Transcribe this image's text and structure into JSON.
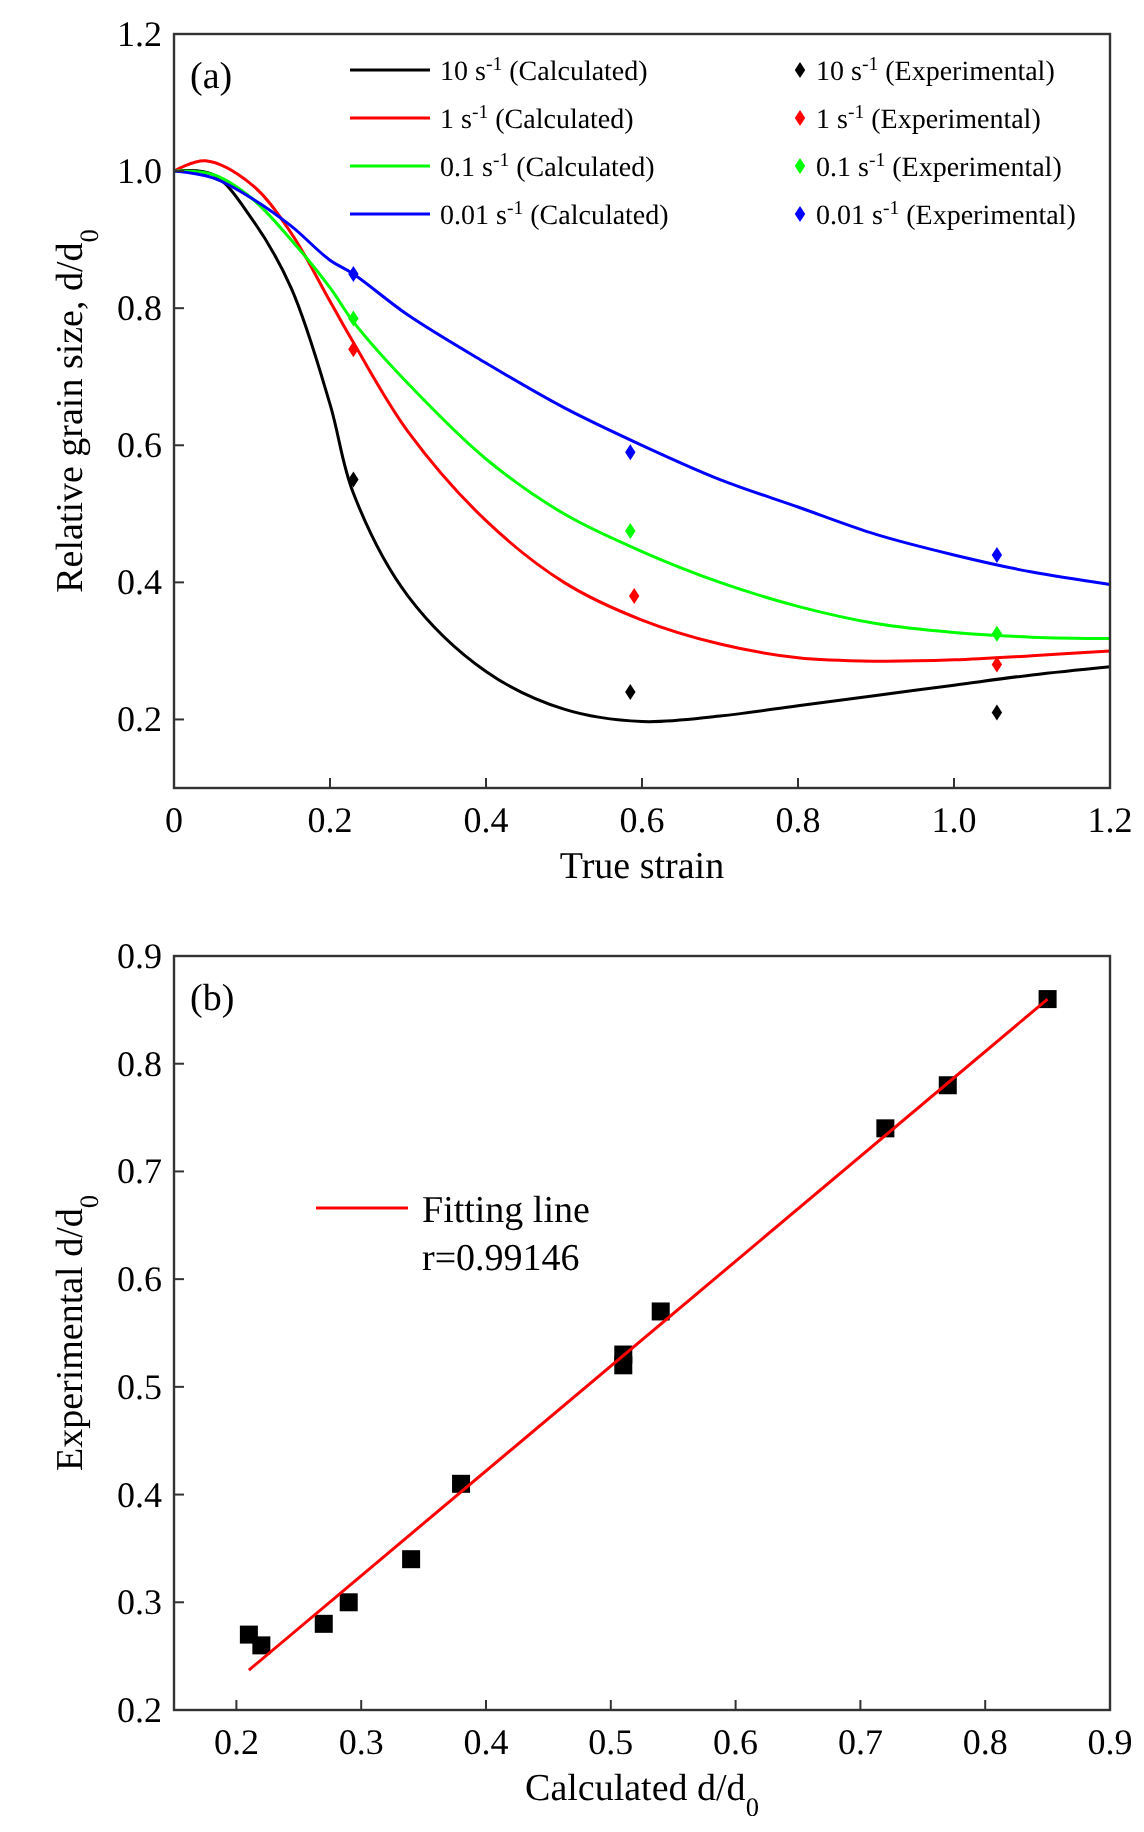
{
  "chart_data": [
    {
      "type": "line",
      "title": "(a)",
      "xlabel": "True strain",
      "ylabel": "Relative grain size, d/d$_{0}$",
      "xlim": [
        0,
        1.2
      ],
      "ylim": [
        0.1,
        1.2
      ],
      "xticks": [
        0,
        0.2,
        0.4,
        0.6,
        0.8,
        {
          "value": 1,
          "label": "1.0"
        },
        1.2
      ],
      "yticks": [
        0.2,
        0.4,
        0.6,
        0.8,
        {
          "value": 1,
          "label": "1.0"
        },
        1.2
      ],
      "grid": false,
      "legend": "top right",
      "series": [
        {
          "name": "10 s$^{-1}$ (Calculated)",
          "color": "#000000",
          "marker": "none",
          "line_style": "solid",
          "x": [
            0,
            0.05,
            0.1,
            0.15,
            0.2,
            0.23,
            0.3,
            0.4,
            0.5,
            0.6,
            0.7,
            0.8,
            0.9,
            1.0,
            1.1,
            1.2
          ],
          "values": [
            1.0,
            0.995,
            0.93,
            0.83,
            0.66,
            0.53,
            0.38,
            0.27,
            0.215,
            0.197,
            0.205,
            0.22,
            0.235,
            0.25,
            0.265,
            0.277
          ]
        },
        {
          "name": "1 s$^{-1}$ (Calculated)",
          "color": "#ff0000",
          "marker": "none",
          "line_style": "solid",
          "x": [
            0,
            0.04,
            0.1,
            0.15,
            0.2,
            0.23,
            0.3,
            0.4,
            0.5,
            0.6,
            0.7,
            0.8,
            0.9,
            1.0,
            1.1,
            1.2
          ],
          "values": [
            1.0,
            1.015,
            0.98,
            0.91,
            0.81,
            0.75,
            0.62,
            0.49,
            0.4,
            0.345,
            0.31,
            0.29,
            0.285,
            0.287,
            0.293,
            0.3
          ]
        },
        {
          "name": "0.1 s$^{-1}$ (Calculated)",
          "color": "#00ff00",
          "marker": "none",
          "line_style": "solid",
          "x": [
            0,
            0.05,
            0.1,
            0.15,
            0.2,
            0.23,
            0.3,
            0.4,
            0.5,
            0.6,
            0.7,
            0.8,
            0.9,
            1.0,
            1.1,
            1.2
          ],
          "values": [
            1.0,
            0.995,
            0.96,
            0.9,
            0.83,
            0.78,
            0.69,
            0.58,
            0.5,
            0.445,
            0.4,
            0.365,
            0.34,
            0.327,
            0.32,
            0.318
          ]
        },
        {
          "name": "0.01 s$^{-1}$ (Calculated)",
          "color": "#0000ff",
          "marker": "none",
          "line_style": "solid",
          "x": [
            0,
            0.05,
            0.1,
            0.15,
            0.2,
            0.23,
            0.3,
            0.4,
            0.5,
            0.6,
            0.7,
            0.8,
            0.9,
            1.0,
            1.1,
            1.2
          ],
          "values": [
            1.0,
            0.99,
            0.96,
            0.92,
            0.87,
            0.85,
            0.79,
            0.72,
            0.655,
            0.6,
            0.55,
            0.51,
            0.47,
            0.44,
            0.415,
            0.397
          ]
        },
        {
          "name": "10 s$^{-1}$ (Experimental)",
          "type": "scatter",
          "color": "#000000",
          "marker": "diamond",
          "x": [
            0.23,
            0.585,
            1.055
          ],
          "values": [
            0.55,
            0.24,
            0.21
          ]
        },
        {
          "name": "1 s$^{-1}$ (Experimental)",
          "type": "scatter",
          "color": "#ff0000",
          "marker": "diamond",
          "x": [
            0.23,
            0.59,
            1.055
          ],
          "values": [
            0.74,
            0.38,
            0.28
          ]
        },
        {
          "name": "0.1 s$^{-1}$ (Experimental)",
          "type": "scatter",
          "color": "#00ff00",
          "marker": "diamond",
          "x": [
            0.23,
            0.585,
            1.055
          ],
          "values": [
            0.785,
            0.475,
            0.325
          ]
        },
        {
          "name": "0.01 s$^{-1}$ (Experimental)",
          "type": "scatter",
          "color": "#0000ff",
          "marker": "diamond",
          "x": [
            0.23,
            0.585,
            1.055
          ],
          "values": [
            0.85,
            0.59,
            0.44
          ]
        }
      ]
    },
    {
      "type": "scatter",
      "title": "(b)",
      "xlabel": "Calculated d/d$_{0}$",
      "ylabel": "Experimental d/d$_{0}$",
      "xlim": [
        0.15,
        0.9
      ],
      "ylim": [
        0.2,
        0.9
      ],
      "xticks": [
        0.2,
        0.3,
        0.4,
        0.5,
        0.6,
        0.7,
        0.8,
        0.9
      ],
      "yticks": [
        0.2,
        0.3,
        0.4,
        0.5,
        0.6,
        0.7,
        0.8,
        0.9
      ],
      "grid": false,
      "legend": "left",
      "annotations": [
        "r=0.99146"
      ],
      "series": [
        {
          "color": "#000000",
          "marker": "square",
          "x": [
            0.21,
            0.22,
            0.27,
            0.29,
            0.34,
            0.38,
            0.51,
            0.51,
            0.54,
            0.72,
            0.77,
            0.85
          ],
          "values": [
            0.27,
            0.26,
            0.28,
            0.3,
            0.34,
            0.41,
            0.52,
            0.53,
            0.57,
            0.74,
            0.78,
            0.86
          ]
        },
        {
          "name": "Fitting line",
          "type": "line",
          "color": "#ff0000",
          "marker": "none",
          "line_style": "solid",
          "x": [
            0.21,
            0.85
          ],
          "values": [
            0.237,
            0.86
          ]
        }
      ]
    }
  ]
}
